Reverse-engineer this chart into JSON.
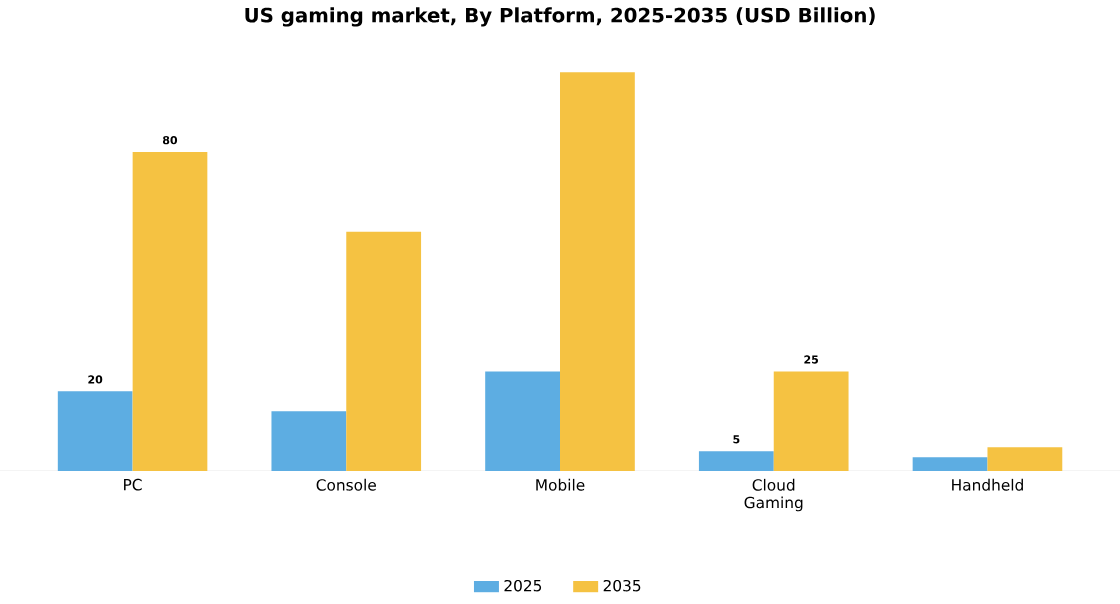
{
  "chart_data": {
    "type": "bar",
    "title": "US gaming market, By Platform, 2025-2035 (USD Billion)",
    "categories": [
      "PC",
      "Console",
      "Mobile",
      "Cloud Gaming",
      "Handheld"
    ],
    "series": [
      {
        "name": "2025",
        "color": "#5dade2",
        "values": [
          20,
          15,
          25,
          5,
          3.5
        ],
        "value_labels": [
          "20",
          null,
          null,
          "5",
          null
        ]
      },
      {
        "name": "2035",
        "color": "#f5c242",
        "values": [
          80,
          60,
          100,
          25,
          6
        ],
        "value_labels": [
          "80",
          null,
          null,
          "25",
          null
        ]
      }
    ],
    "legend": "bottom",
    "grid": false
  }
}
